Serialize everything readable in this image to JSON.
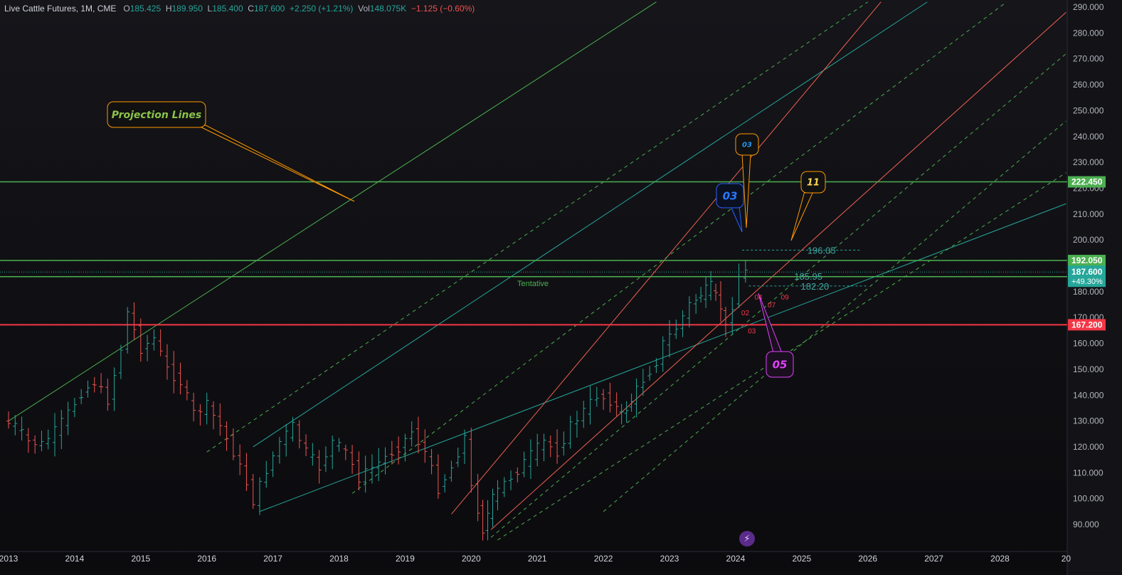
{
  "header": {
    "symbol": "Live Cattle Futures, 1M, CME",
    "o_label": "O",
    "o_value": "185.425",
    "h_label": "H",
    "h_value": "189.950",
    "l_label": "L",
    "l_value": "185.400",
    "c_label": "C",
    "c_value": "187.600",
    "change": "+2.250 (+1.21%)",
    "vol_label": "Vol",
    "vol_value": "148.075K",
    "vol_change": "−1.125 (−0.60%)"
  },
  "colors": {
    "background": "#0f0f12",
    "up": "#26a69a",
    "down": "#ef5350",
    "green_line": "#4caf50",
    "teal_line": "#26a69a",
    "red_line": "#ff0000",
    "orange_callout": "#ff9800",
    "blue_callout": "#2962ff",
    "pink_callout": "#e040fb"
  },
  "chart_data": {
    "type": "candlestick",
    "x_axis_labels": [
      "2013",
      "2014",
      "2015",
      "2016",
      "2017",
      "2018",
      "2019",
      "2020",
      "2021",
      "2022",
      "2023",
      "2024",
      "2025",
      "2026",
      "2027",
      "2028",
      "20"
    ],
    "y_axis_labels": [
      "90.000",
      "100.000",
      "110.000",
      "120.000",
      "130.000",
      "140.000",
      "150.000",
      "160.000",
      "170.000",
      "180.000",
      "190.000",
      "200.000",
      "210.000",
      "220.000",
      "230.000",
      "240.000",
      "250.000",
      "260.000",
      "270.000",
      "280.000",
      "290.000"
    ],
    "ylim": [
      82,
      292
    ],
    "xlim": [
      2013.0,
      2029.0
    ],
    "price_series": [
      [
        2013.0,
        130
      ],
      [
        2013.2,
        128
      ],
      [
        2013.4,
        122
      ],
      [
        2013.6,
        121
      ],
      [
        2013.8,
        126
      ],
      [
        2014.0,
        133
      ],
      [
        2014.2,
        141
      ],
      [
        2014.4,
        145
      ],
      [
        2014.6,
        138
      ],
      [
        2014.8,
        158
      ],
      [
        2014.9,
        172
      ],
      [
        2015.0,
        165
      ],
      [
        2015.1,
        158
      ],
      [
        2015.3,
        162
      ],
      [
        2015.5,
        150
      ],
      [
        2015.7,
        145
      ],
      [
        2015.9,
        133
      ],
      [
        2016.1,
        136
      ],
      [
        2016.3,
        128
      ],
      [
        2016.5,
        118
      ],
      [
        2016.7,
        106
      ],
      [
        2016.8,
        99
      ],
      [
        2017.0,
        111
      ],
      [
        2017.2,
        122
      ],
      [
        2017.4,
        128
      ],
      [
        2017.6,
        118
      ],
      [
        2017.8,
        112
      ],
      [
        2018.0,
        122
      ],
      [
        2018.2,
        118
      ],
      [
        2018.4,
        108
      ],
      [
        2018.6,
        112
      ],
      [
        2018.8,
        116
      ],
      [
        2019.0,
        120
      ],
      [
        2019.2,
        126
      ],
      [
        2019.4,
        118
      ],
      [
        2019.6,
        104
      ],
      [
        2019.8,
        112
      ],
      [
        2020.0,
        124
      ],
      [
        2020.1,
        104
      ],
      [
        2020.25,
        88
      ],
      [
        2020.4,
        100
      ],
      [
        2020.6,
        106
      ],
      [
        2020.8,
        111
      ],
      [
        2021.0,
        117
      ],
      [
        2021.2,
        122
      ],
      [
        2021.4,
        118
      ],
      [
        2021.6,
        128
      ],
      [
        2021.8,
        134
      ],
      [
        2022.0,
        140
      ],
      [
        2022.2,
        138
      ],
      [
        2022.35,
        132
      ],
      [
        2022.5,
        138
      ],
      [
        2022.7,
        146
      ],
      [
        2022.9,
        153
      ],
      [
        2023.0,
        160
      ],
      [
        2023.2,
        166
      ],
      [
        2023.4,
        175
      ],
      [
        2023.55,
        179
      ],
      [
        2023.7,
        182
      ],
      [
        2023.85,
        174
      ],
      [
        2023.95,
        166
      ],
      [
        2024.05,
        175
      ],
      [
        2024.15,
        186
      ],
      [
        2024.2,
        187.6
      ]
    ],
    "horizontal_levels": [
      {
        "value": 222.45,
        "label": "222.450",
        "color": "#4caf50"
      },
      {
        "value": 192.05,
        "label": "192.050",
        "color": "#4caf50"
      },
      {
        "value": 185.8,
        "label": "185.800",
        "color": "#4caf50"
      },
      {
        "value": 167.2,
        "label": "167.200",
        "color": "#f23645"
      }
    ],
    "current_price": {
      "value": 187.6,
      "label": "187.600",
      "change": "+49.30%"
    },
    "level_labels": [
      {
        "text": "196.05",
        "x": 2025.0,
        "y": 196.05
      },
      {
        "text": "185.95",
        "x": 2024.8,
        "y": 185.95
      },
      {
        "text": "182.20",
        "x": 2024.9,
        "y": 182.2
      }
    ],
    "small_labels": [
      {
        "text": "04",
        "x": 2024.2,
        "y": 178
      },
      {
        "text": "09",
        "x": 2024.6,
        "y": 178
      },
      {
        "text": "07",
        "x": 2024.4,
        "y": 175
      },
      {
        "text": "02",
        "x": 2024.0,
        "y": 172
      },
      {
        "text": "03",
        "x": 2024.1,
        "y": 165
      }
    ],
    "annotations": {
      "tentative": "Tentative",
      "projection_lines": "Projection Lines",
      "callout_03_orange": "03",
      "callout_03_blue": "03",
      "callout_11": "11",
      "callout_05": "05"
    }
  }
}
